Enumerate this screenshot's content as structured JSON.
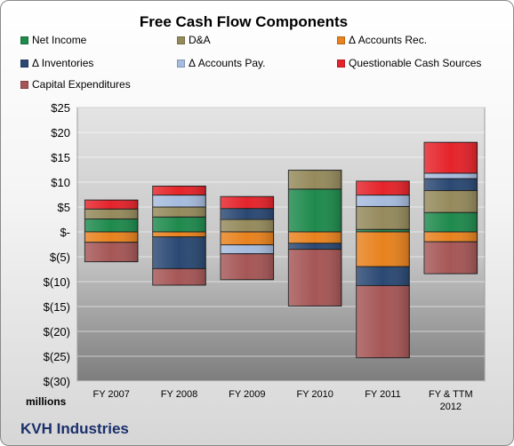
{
  "chart_data": {
    "type": "bar",
    "stacked": true,
    "title": "Free Cash Flow Components",
    "units_label": "millions",
    "company": "KVH Industries",
    "categories": [
      "FY 2007",
      "FY 2008",
      "FY 2009",
      "FY 2010",
      "FY 2011",
      "FY & TTM|2012"
    ],
    "ylim": [
      -30,
      25
    ],
    "yticks": [
      "$25",
      "$20",
      "$15",
      "$10",
      "$5",
      "$-",
      "$(5)",
      "$(10)",
      "$(15)",
      "$(20)",
      "$(25)",
      "$(30)"
    ],
    "ytick_values": [
      25,
      20,
      15,
      10,
      5,
      0,
      -5,
      -10,
      -15,
      -20,
      -25,
      -30
    ],
    "grid": true,
    "legend_position": "top",
    "series": [
      {
        "name": "Net Income",
        "color": "#1e8a4c",
        "values": [
          2.6,
          3.0,
          0.0,
          8.6,
          0.5,
          3.9
        ]
      },
      {
        "name": "D&A",
        "color": "#958a5c",
        "values": [
          2.0,
          2.0,
          2.5,
          3.8,
          4.6,
          4.4
        ]
      },
      {
        "name": "Δ Accounts Rec.",
        "color": "#e8821e",
        "values": [
          -2.1,
          -1.0,
          -2.6,
          -2.3,
          -7.0,
          -2.0
        ]
      },
      {
        "name": "Δ Inventories",
        "color": "#2a4873",
        "values": [
          0.0,
          -6.4,
          2.2,
          -1.2,
          -3.8,
          2.4
        ]
      },
      {
        "name": "Δ Accounts Pay.",
        "color": "#a6bbdd",
        "values": [
          0.0,
          2.4,
          -1.8,
          0.0,
          2.3,
          1.1
        ]
      },
      {
        "name": "Questionable Cash Sources",
        "color": "#e5232a",
        "values": [
          1.8,
          1.8,
          2.4,
          0.0,
          2.8,
          6.2
        ]
      },
      {
        "name": "Capital Expenditures",
        "color": "#a65656",
        "values": [
          -3.9,
          -3.3,
          -5.2,
          -11.4,
          -14.5,
          -6.4
        ]
      }
    ]
  }
}
